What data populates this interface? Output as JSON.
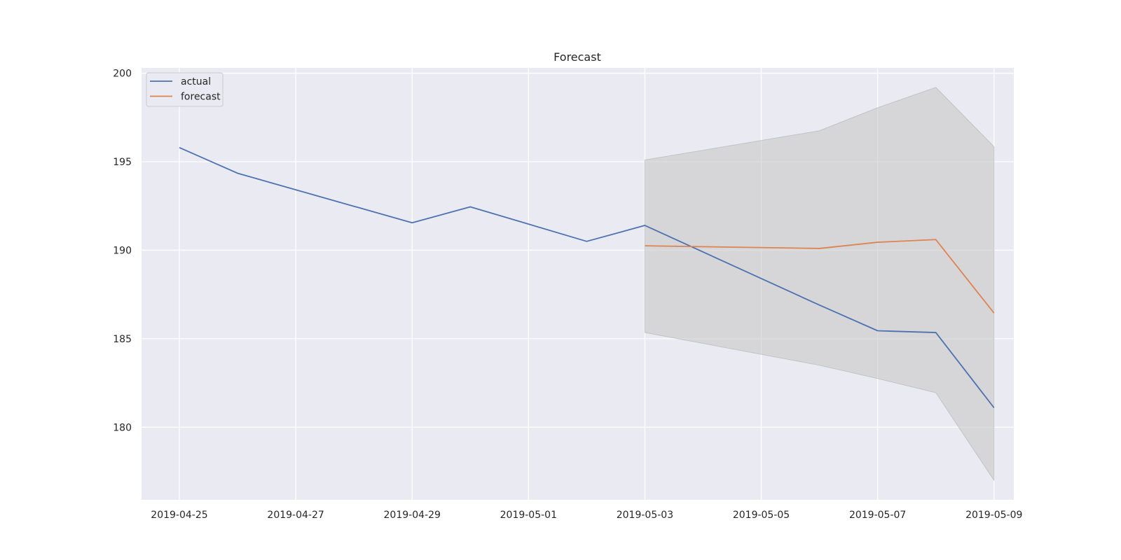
{
  "chart_data": {
    "type": "line",
    "title": "Forecast",
    "xlabel": "",
    "ylabel": "",
    "x_ticks": [
      "2019-04-25",
      "2019-04-27",
      "2019-04-29",
      "2019-05-01",
      "2019-05-03",
      "2019-05-05",
      "2019-05-07",
      "2019-05-09"
    ],
    "y_ticks": [
      180,
      185,
      190,
      195,
      200
    ],
    "xlim": [
      "2019-04-24",
      "2019-05-09"
    ],
    "ylim": [
      175.9,
      200.3
    ],
    "grid": true,
    "legend_position": "top-left",
    "series": [
      {
        "name": "actual",
        "color": "#4c72b0",
        "points": [
          {
            "x": "2019-04-25",
            "y": 195.8
          },
          {
            "x": "2019-04-26",
            "y": 194.35
          },
          {
            "x": "2019-04-29",
            "y": 191.55
          },
          {
            "x": "2019-04-30",
            "y": 192.45
          },
          {
            "x": "2019-05-02",
            "y": 190.5
          },
          {
            "x": "2019-05-03",
            "y": 191.4
          },
          {
            "x": "2019-05-06",
            "y": 186.9
          },
          {
            "x": "2019-05-07",
            "y": 185.45
          },
          {
            "x": "2019-05-08",
            "y": 185.35
          },
          {
            "x": "2019-05-09",
            "y": 181.1
          }
        ]
      },
      {
        "name": "forecast",
        "color": "#dd8452",
        "points": [
          {
            "x": "2019-05-03",
            "y": 190.25
          },
          {
            "x": "2019-05-06",
            "y": 190.1
          },
          {
            "x": "2019-05-07",
            "y": 190.45
          },
          {
            "x": "2019-05-08",
            "y": 190.6
          },
          {
            "x": "2019-05-09",
            "y": 186.45
          }
        ]
      }
    ],
    "confidence_band": {
      "color": "#c8c8c8",
      "points": [
        {
          "x": "2019-05-03",
          "lower": 185.35,
          "upper": 195.1
        },
        {
          "x": "2019-05-06",
          "lower": 183.5,
          "upper": 196.75
        },
        {
          "x": "2019-05-07",
          "lower": 182.75,
          "upper": 198.05
        },
        {
          "x": "2019-05-08",
          "lower": 181.95,
          "upper": 199.2
        },
        {
          "x": "2019-05-09",
          "lower": 177.0,
          "upper": 195.85
        }
      ]
    }
  }
}
